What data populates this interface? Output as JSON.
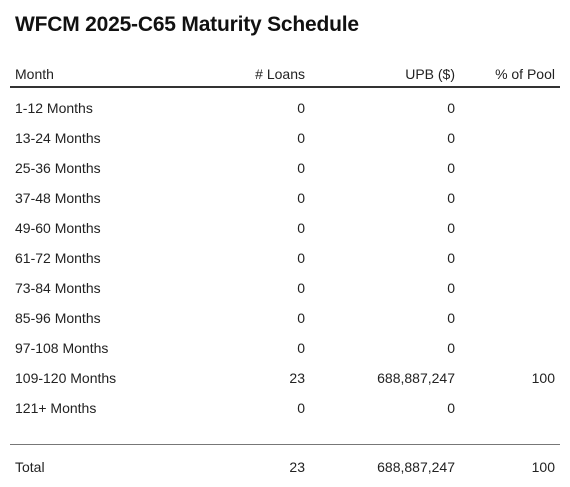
{
  "title": "WFCM 2025-C65 Maturity Schedule",
  "columns": {
    "month": "Month",
    "loans": "# Loans",
    "upb": "UPB ($)",
    "pct": "% of Pool"
  },
  "rows": [
    {
      "month": "1-12 Months",
      "loans": "0",
      "upb": "0",
      "pct": ""
    },
    {
      "month": "13-24 Months",
      "loans": "0",
      "upb": "0",
      "pct": ""
    },
    {
      "month": "25-36 Months",
      "loans": "0",
      "upb": "0",
      "pct": ""
    },
    {
      "month": "37-48 Months",
      "loans": "0",
      "upb": "0",
      "pct": ""
    },
    {
      "month": "49-60 Months",
      "loans": "0",
      "upb": "0",
      "pct": ""
    },
    {
      "month": "61-72 Months",
      "loans": "0",
      "upb": "0",
      "pct": ""
    },
    {
      "month": "73-84 Months",
      "loans": "0",
      "upb": "0",
      "pct": ""
    },
    {
      "month": "85-96 Months",
      "loans": "0",
      "upb": "0",
      "pct": ""
    },
    {
      "month": "97-108 Months",
      "loans": "0",
      "upb": "0",
      "pct": ""
    },
    {
      "month": "109-120 Months",
      "loans": "23",
      "upb": "688,887,247",
      "pct": "100"
    },
    {
      "month": "121+ Months",
      "loans": "0",
      "upb": "0",
      "pct": ""
    }
  ],
  "total": {
    "label": "Total",
    "loans": "23",
    "upb": "688,887,247",
    "pct": "100"
  }
}
